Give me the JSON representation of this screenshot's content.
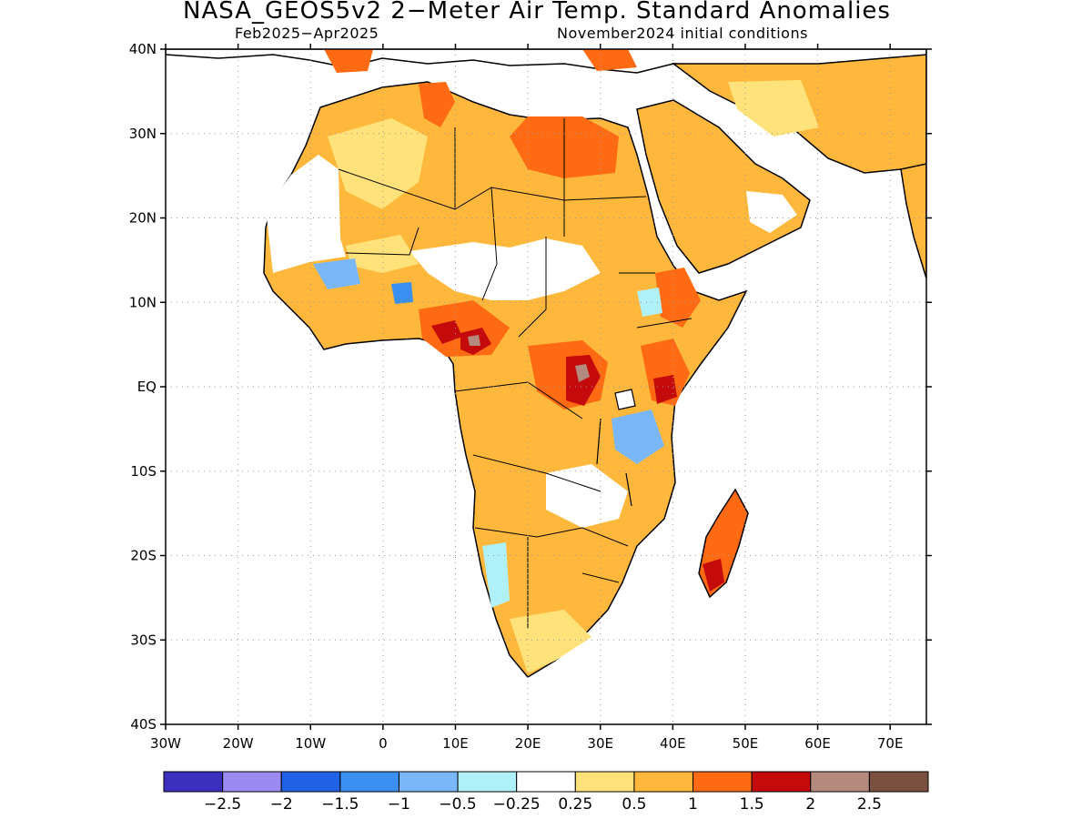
{
  "title": "NASA_GEOS5v2 2−Meter Air Temp. Standard Anomalies",
  "subtitle_left": "Feb2025−Apr2025",
  "subtitle_right": "November2024 initial conditions",
  "axes": {
    "lon_labels": [
      "30W",
      "20W",
      "10W",
      "0",
      "10E",
      "20E",
      "30E",
      "40E",
      "50E",
      "60E",
      "70E"
    ],
    "lat_labels": [
      "40N",
      "30N",
      "20N",
      "10N",
      "EQ",
      "10S",
      "20S",
      "30S",
      "40S"
    ],
    "lon_range": [
      -30,
      75
    ],
    "lat_range": [
      -40,
      40
    ],
    "grid": "dotted"
  },
  "colors": {
    "ocean": "#ffffff",
    "coast": "#000000",
    "neutral": "#ffffff",
    "warm_05": "#ffe27a",
    "warm_1": "#ffb83c",
    "warm_15": "#ff6a12",
    "warm_2": "#c40a0a",
    "warm_25": "#b58a7e",
    "cool_025": "#b0f0f8",
    "cool_05": "#7ab7f8",
    "cool_1": "#3b8ff0"
  },
  "colorbar": {
    "colors": [
      "#3a2fbf",
      "#9b8af2",
      "#1f62e6",
      "#3b8ff0",
      "#7ab7f8",
      "#b0f0f8",
      "#ffffff",
      "#ffe27a",
      "#ffb83c",
      "#ff6a12",
      "#c40a0a",
      "#b58a7e",
      "#7a5040"
    ],
    "labels": [
      "−2.5",
      "−2",
      "−1.5",
      "−1",
      "−0.5",
      "−0.25",
      "0.25",
      "0.5",
      "1",
      "1.5",
      "2",
      "2.5"
    ]
  }
}
